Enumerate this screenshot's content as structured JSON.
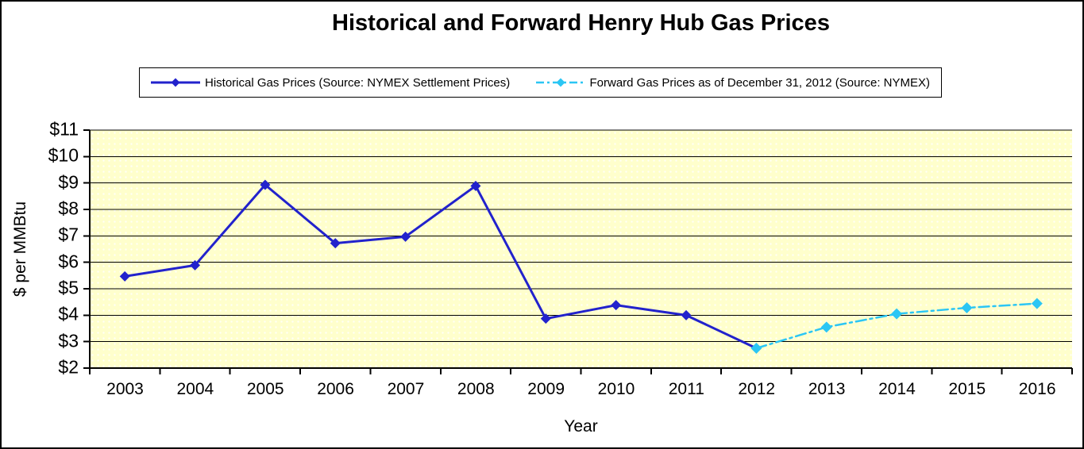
{
  "chart_data": {
    "type": "line",
    "title": "Historical and Forward Henry Hub Gas Prices",
    "xlabel": "Year",
    "ylabel": "$ per MMBtu",
    "x_categories": [
      "2003",
      "2004",
      "2005",
      "2006",
      "2007",
      "2008",
      "2009",
      "2010",
      "2011",
      "2012",
      "2013",
      "2014",
      "2015",
      "2016"
    ],
    "ylim": [
      2,
      11
    ],
    "ytick_step": 1,
    "ytick_prefix": "$",
    "grid": "horizontal",
    "legend_position": "top-center",
    "plot_bg_color": "#FFFFCC",
    "grid_color": "#000000",
    "axis_color": "#000000",
    "series": [
      {
        "name": "Historical Gas Prices (Source: NYMEX Settlement Prices)",
        "color": "#2222CC",
        "line_style": "solid",
        "marker": "diamond",
        "x": [
          "2003",
          "2004",
          "2005",
          "2006",
          "2007",
          "2008",
          "2009",
          "2010",
          "2011",
          "2012"
        ],
        "values": [
          5.47,
          5.89,
          8.93,
          6.72,
          6.97,
          8.89,
          3.87,
          4.38,
          4.0,
          2.75
        ]
      },
      {
        "name": "Forward Gas Prices as of December 31, 2012 (Source: NYMEX)",
        "color": "#2BC6F4",
        "line_style": "dash-dot",
        "marker": "diamond",
        "x": [
          "2012",
          "2013",
          "2014",
          "2015",
          "2016"
        ],
        "values": [
          2.75,
          3.55,
          4.05,
          4.28,
          4.44
        ]
      }
    ]
  }
}
